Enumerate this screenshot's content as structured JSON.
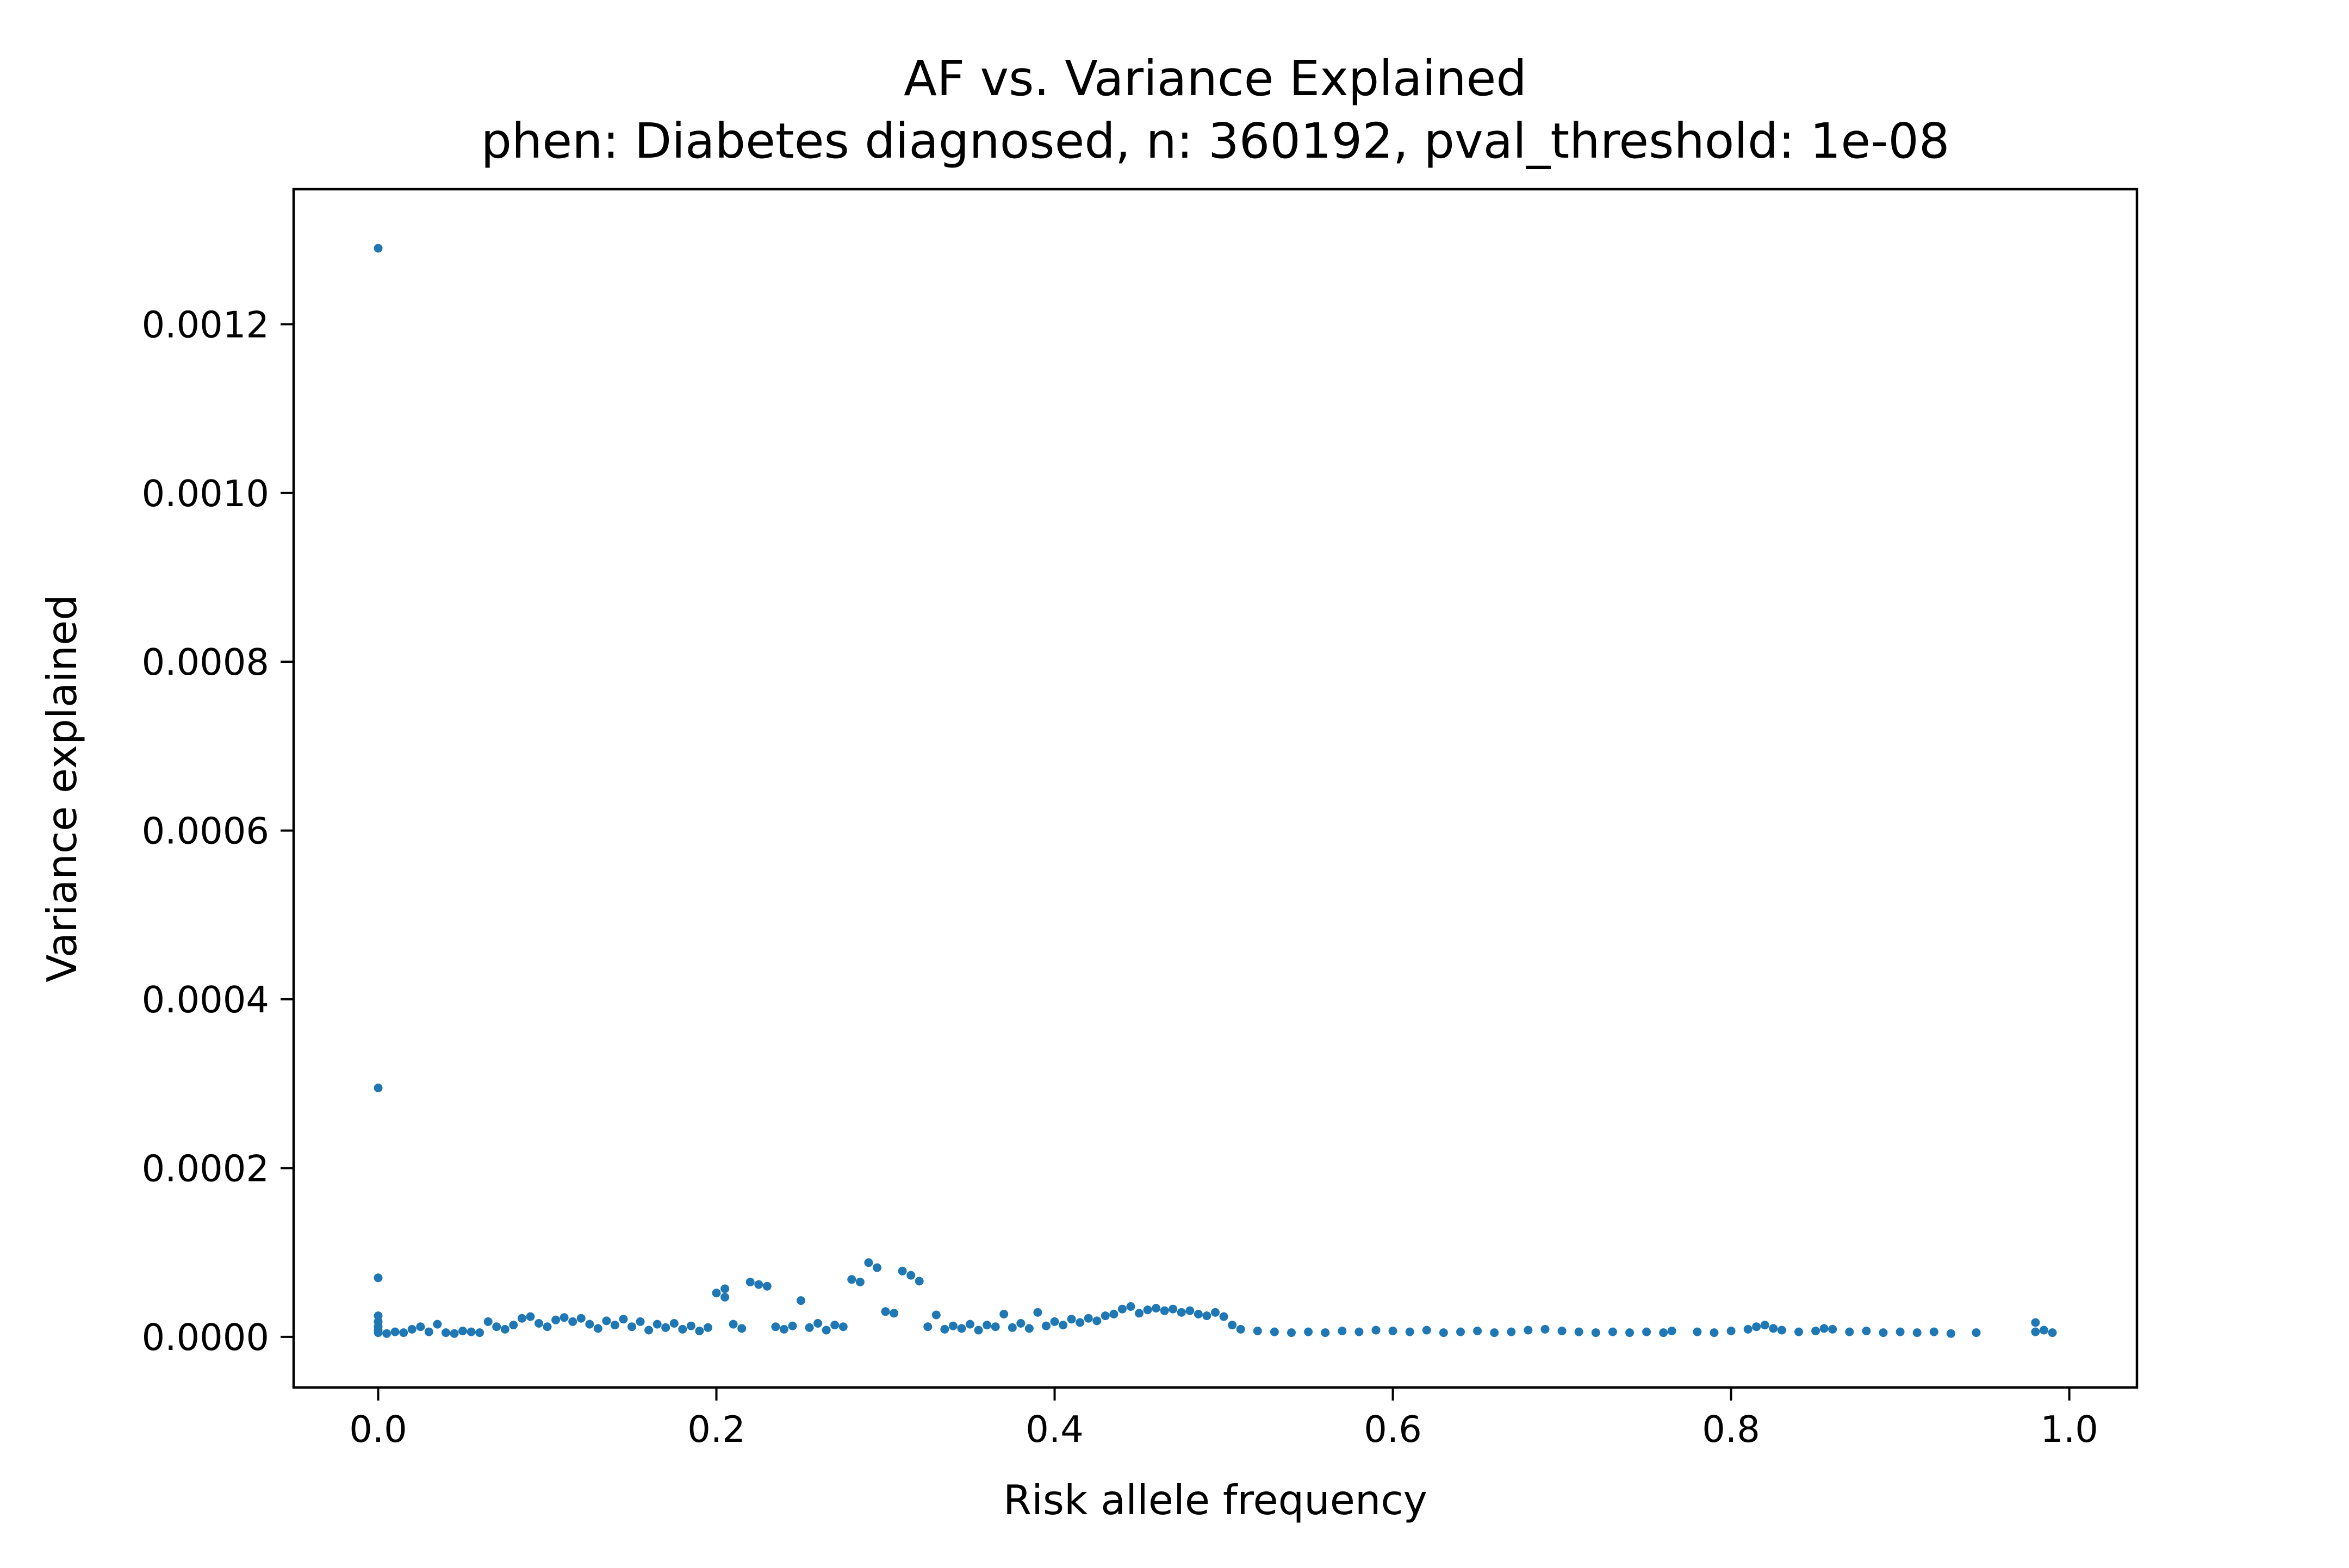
{
  "chart_data": {
    "type": "scatter",
    "title": "AF vs. Variance Explained",
    "subtitle": "phen: Diabetes diagnosed, n: 360192, pval_threshold: 1e-08",
    "xlabel": "Risk allele frequency",
    "ylabel": "Variance explained",
    "xlim": [
      -0.05,
      1.04
    ],
    "ylim": [
      -6e-05,
      0.00136
    ],
    "xticks": [
      "0.0",
      "0.2",
      "0.4",
      "0.6",
      "0.8",
      "1.0"
    ],
    "yticks": [
      "0.0000",
      "0.0002",
      "0.0004",
      "0.0006",
      "0.0008",
      "0.0010",
      "0.0012"
    ],
    "grid": false,
    "legend": "none",
    "marker_color": "#1f77b4",
    "series": [
      {
        "points": [
          [
            0.0,
            0.00129
          ],
          [
            0.0,
            0.000295
          ],
          [
            0.0,
            7e-05
          ],
          [
            0.0,
            2.5e-05
          ],
          [
            0.0,
            1.8e-05
          ],
          [
            0.0,
            1.2e-05
          ],
          [
            0.0,
            8e-06
          ],
          [
            0.0,
            5e-06
          ],
          [
            0.005,
            4e-06
          ],
          [
            0.01,
            6e-06
          ],
          [
            0.015,
            5e-06
          ],
          [
            0.02,
            9e-06
          ],
          [
            0.025,
            1.2e-05
          ],
          [
            0.03,
            6e-06
          ],
          [
            0.035,
            1.5e-05
          ],
          [
            0.04,
            5e-06
          ],
          [
            0.045,
            4e-06
          ],
          [
            0.05,
            7e-06
          ],
          [
            0.055,
            6e-06
          ],
          [
            0.06,
            5e-06
          ],
          [
            0.065,
            1.8e-05
          ],
          [
            0.07,
            1.2e-05
          ],
          [
            0.075,
            9e-06
          ],
          [
            0.08,
            1.4e-05
          ],
          [
            0.085,
            2.2e-05
          ],
          [
            0.09,
            2.4e-05
          ],
          [
            0.095,
            1.6e-05
          ],
          [
            0.1,
            1.2e-05
          ],
          [
            0.105,
            2e-05
          ],
          [
            0.11,
            2.3e-05
          ],
          [
            0.115,
            1.8e-05
          ],
          [
            0.12,
            2.2e-05
          ],
          [
            0.125,
            1.5e-05
          ],
          [
            0.13,
            1e-05
          ],
          [
            0.135,
            1.9e-05
          ],
          [
            0.14,
            1.4e-05
          ],
          [
            0.145,
            2.1e-05
          ],
          [
            0.15,
            1.2e-05
          ],
          [
            0.155,
            1.8e-05
          ],
          [
            0.16,
            8e-06
          ],
          [
            0.165,
            1.5e-05
          ],
          [
            0.17,
            1.1e-05
          ],
          [
            0.175,
            1.6e-05
          ],
          [
            0.18,
            9e-06
          ],
          [
            0.185,
            1.3e-05
          ],
          [
            0.19,
            7e-06
          ],
          [
            0.195,
            1.1e-05
          ],
          [
            0.2,
            5.2e-05
          ],
          [
            0.205,
            5.7e-05
          ],
          [
            0.205,
            4.7e-05
          ],
          [
            0.21,
            1.5e-05
          ],
          [
            0.215,
            1e-05
          ],
          [
            0.22,
            6.5e-05
          ],
          [
            0.225,
            6.2e-05
          ],
          [
            0.23,
            6e-05
          ],
          [
            0.235,
            1.2e-05
          ],
          [
            0.24,
            9e-06
          ],
          [
            0.245,
            1.3e-05
          ],
          [
            0.25,
            4.3e-05
          ],
          [
            0.255,
            1.1e-05
          ],
          [
            0.26,
            1.6e-05
          ],
          [
            0.265,
            8e-06
          ],
          [
            0.27,
            1.4e-05
          ],
          [
            0.275,
            1.2e-05
          ],
          [
            0.28,
            6.8e-05
          ],
          [
            0.285,
            6.5e-05
          ],
          [
            0.29,
            8.8e-05
          ],
          [
            0.295,
            8.2e-05
          ],
          [
            0.3,
            3e-05
          ],
          [
            0.305,
            2.8e-05
          ],
          [
            0.31,
            7.8e-05
          ],
          [
            0.315,
            7.3e-05
          ],
          [
            0.32,
            6.6e-05
          ],
          [
            0.325,
            1.2e-05
          ],
          [
            0.33,
            2.6e-05
          ],
          [
            0.335,
            9e-06
          ],
          [
            0.34,
            1.3e-05
          ],
          [
            0.345,
            1e-05
          ],
          [
            0.35,
            1.5e-05
          ],
          [
            0.355,
            8e-06
          ],
          [
            0.36,
            1.4e-05
          ],
          [
            0.365,
            1.2e-05
          ],
          [
            0.37,
            2.7e-05
          ],
          [
            0.375,
            1.1e-05
          ],
          [
            0.38,
            1.6e-05
          ],
          [
            0.385,
            1e-05
          ],
          [
            0.39,
            2.9e-05
          ],
          [
            0.395,
            1.3e-05
          ],
          [
            0.4,
            1.8e-05
          ],
          [
            0.405,
            1.4e-05
          ],
          [
            0.41,
            2.1e-05
          ],
          [
            0.415,
            1.7e-05
          ],
          [
            0.42,
            2.2e-05
          ],
          [
            0.425,
            1.9e-05
          ],
          [
            0.43,
            2.5e-05
          ],
          [
            0.435,
            2.7e-05
          ],
          [
            0.44,
            3.3e-05
          ],
          [
            0.445,
            3.6e-05
          ],
          [
            0.45,
            2.8e-05
          ],
          [
            0.455,
            3.2e-05
          ],
          [
            0.46,
            3.4e-05
          ],
          [
            0.465,
            3.1e-05
          ],
          [
            0.47,
            3.3e-05
          ],
          [
            0.475,
            2.9e-05
          ],
          [
            0.48,
            3.1e-05
          ],
          [
            0.485,
            2.7e-05
          ],
          [
            0.49,
            2.5e-05
          ],
          [
            0.495,
            2.9e-05
          ],
          [
            0.5,
            2.4e-05
          ],
          [
            0.505,
            1.4e-05
          ],
          [
            0.51,
            9e-06
          ],
          [
            0.52,
            7e-06
          ],
          [
            0.53,
            6e-06
          ],
          [
            0.54,
            5e-06
          ],
          [
            0.55,
            6e-06
          ],
          [
            0.56,
            5e-06
          ],
          [
            0.57,
            7e-06
          ],
          [
            0.58,
            6e-06
          ],
          [
            0.59,
            8e-06
          ],
          [
            0.6,
            7e-06
          ],
          [
            0.61,
            6e-06
          ],
          [
            0.62,
            8e-06
          ],
          [
            0.63,
            5e-06
          ],
          [
            0.64,
            6e-06
          ],
          [
            0.65,
            7e-06
          ],
          [
            0.66,
            5e-06
          ],
          [
            0.67,
            6e-06
          ],
          [
            0.68,
            8e-06
          ],
          [
            0.69,
            9e-06
          ],
          [
            0.7,
            7e-06
          ],
          [
            0.71,
            6e-06
          ],
          [
            0.72,
            5e-06
          ],
          [
            0.73,
            6e-06
          ],
          [
            0.74,
            5e-06
          ],
          [
            0.75,
            6e-06
          ],
          [
            0.76,
            5e-06
          ],
          [
            0.765,
            7e-06
          ],
          [
            0.78,
            6e-06
          ],
          [
            0.79,
            5e-06
          ],
          [
            0.8,
            7e-06
          ],
          [
            0.81,
            9e-06
          ],
          [
            0.815,
            1.2e-05
          ],
          [
            0.82,
            1.4e-05
          ],
          [
            0.825,
            1e-05
          ],
          [
            0.83,
            8e-06
          ],
          [
            0.84,
            6e-06
          ],
          [
            0.85,
            7e-06
          ],
          [
            0.855,
            1e-05
          ],
          [
            0.86,
            9e-06
          ],
          [
            0.87,
            6e-06
          ],
          [
            0.88,
            7e-06
          ],
          [
            0.89,
            5e-06
          ],
          [
            0.9,
            6e-06
          ],
          [
            0.91,
            5e-06
          ],
          [
            0.92,
            6e-06
          ],
          [
            0.93,
            4e-06
          ],
          [
            0.945,
            5e-06
          ],
          [
            0.98,
            1.7e-05
          ],
          [
            0.98,
            6e-06
          ],
          [
            0.985,
            8e-06
          ],
          [
            0.99,
            5e-06
          ]
        ]
      }
    ]
  }
}
